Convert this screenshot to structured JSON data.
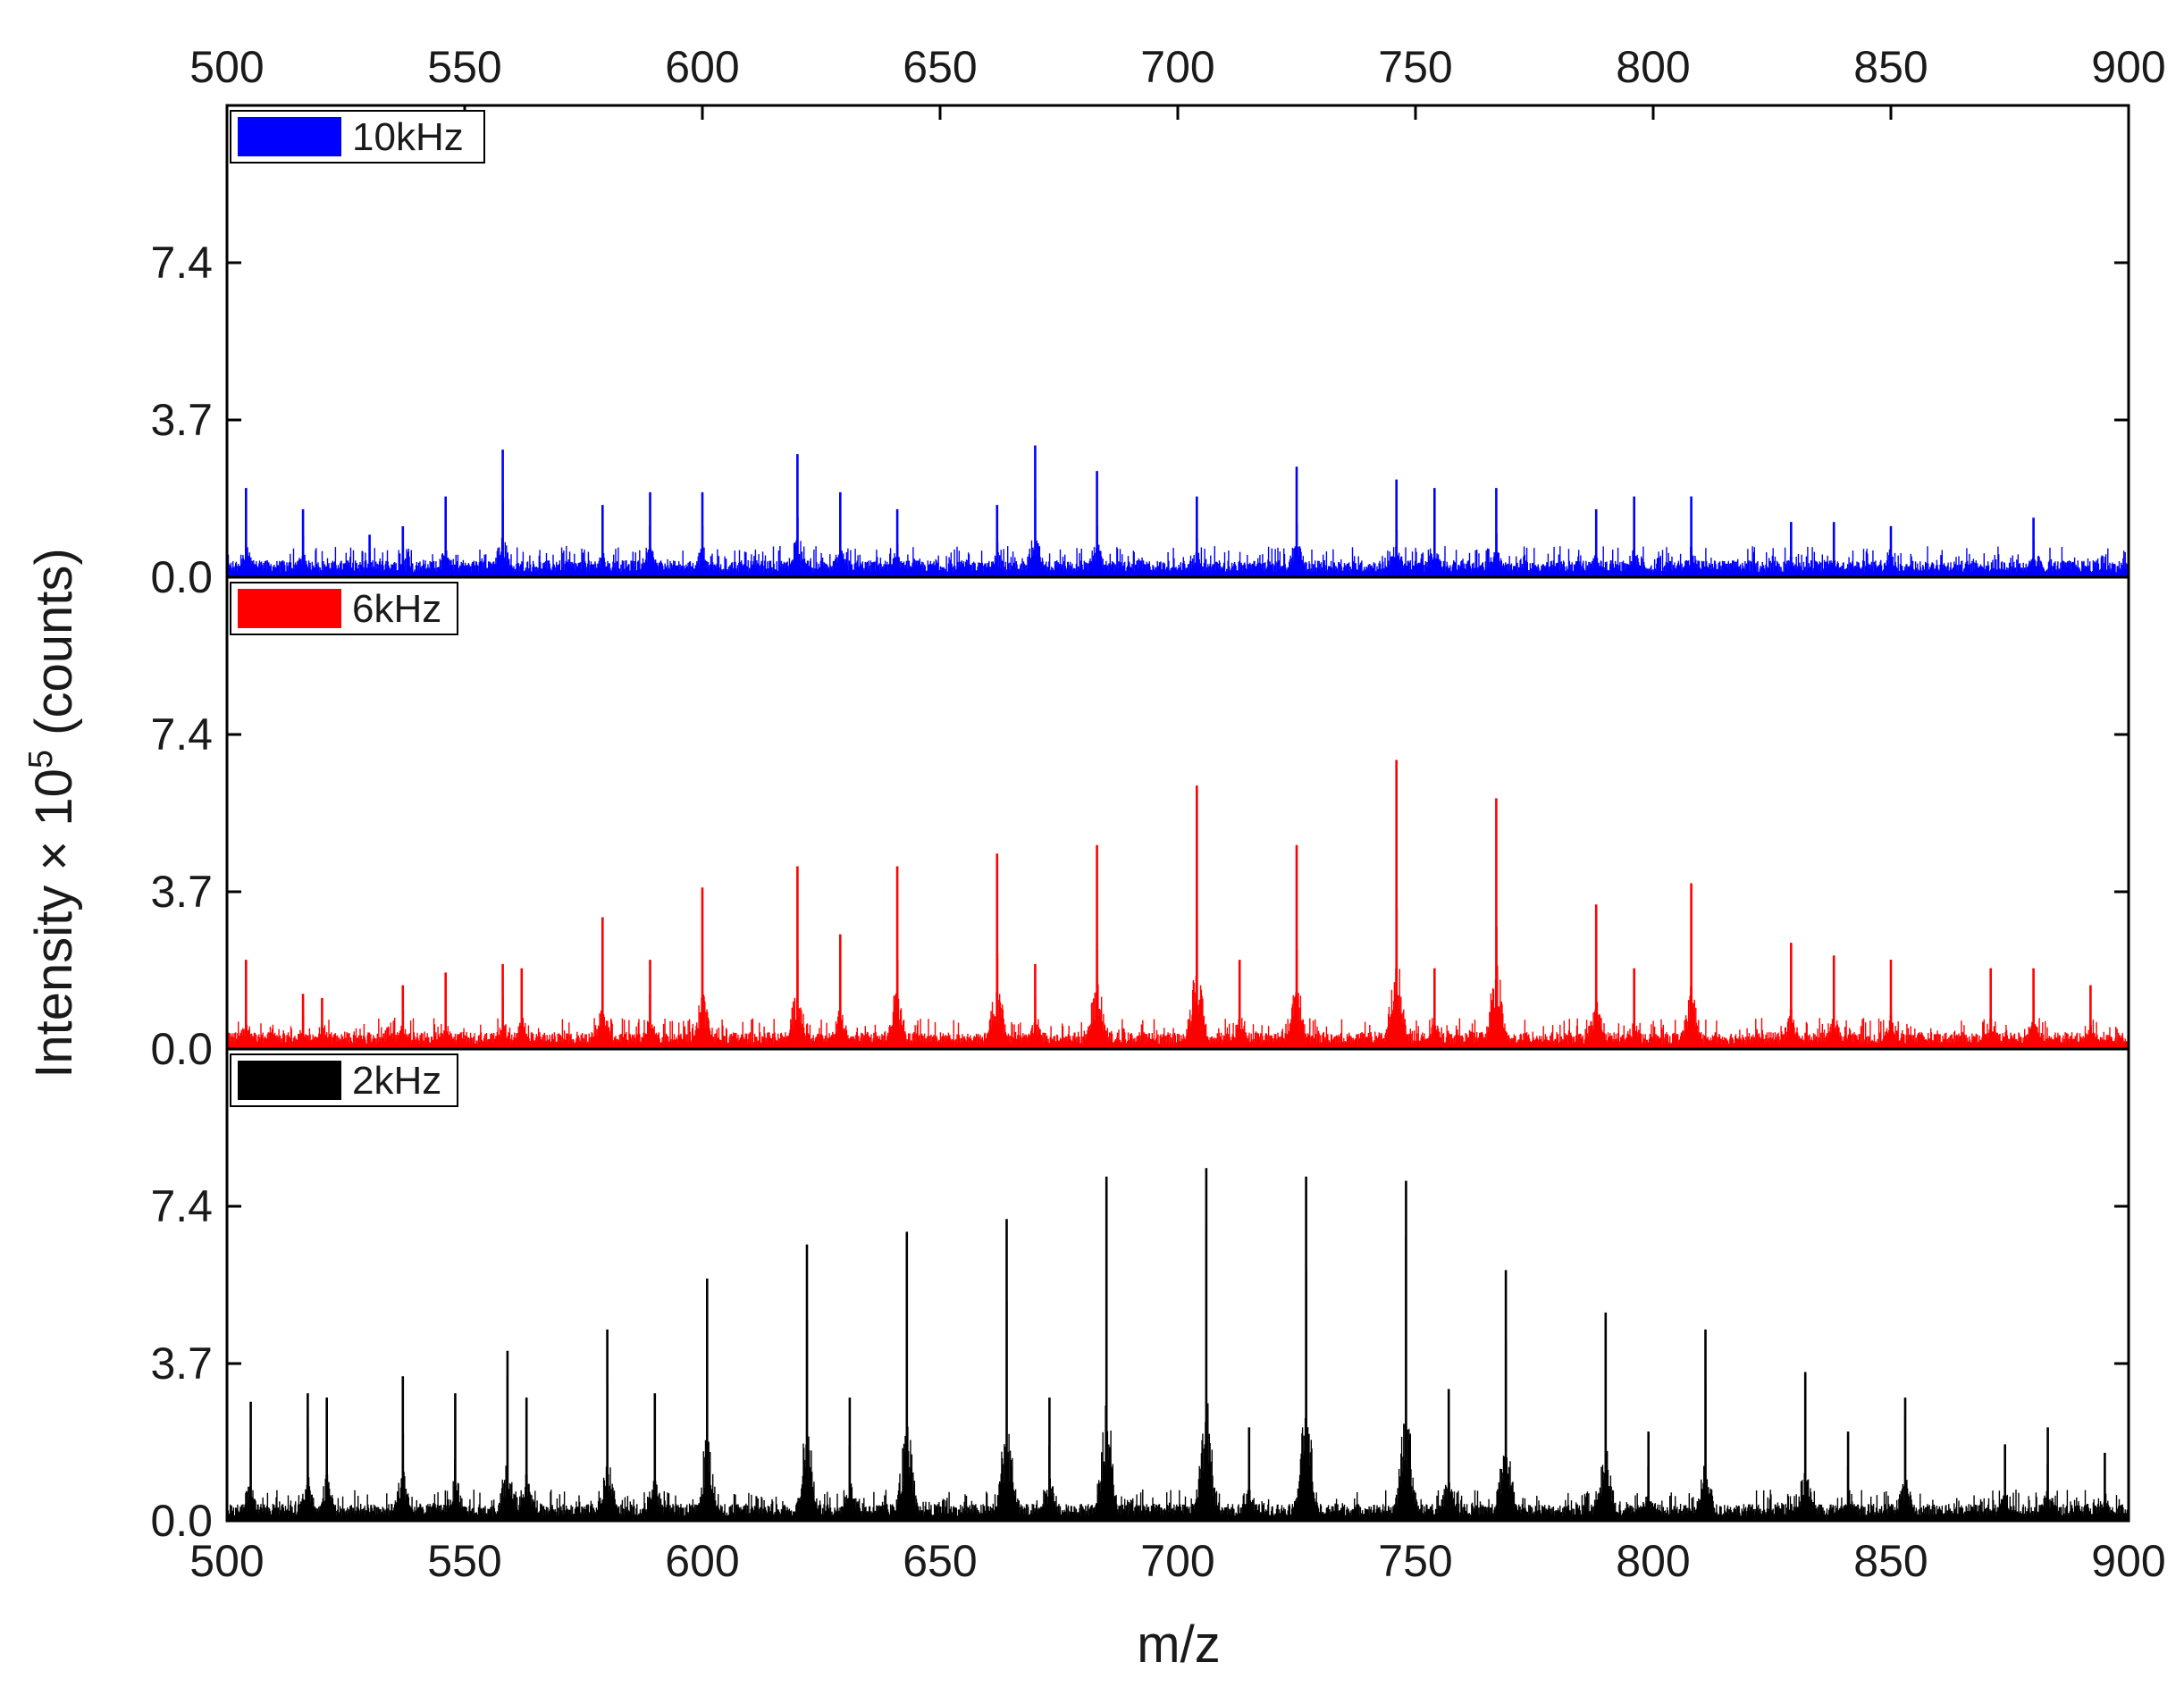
{
  "chart_data": {
    "type": "line",
    "subtype": "stacked-spectra",
    "xlabel": "m/z",
    "ylabel": "Intensity × 10",
    "ylabel_exponent": "5",
    "ylabel_suffix": " (counts)",
    "xlim": [
      500,
      900
    ],
    "x_ticks": [
      500,
      550,
      600,
      650,
      700,
      750,
      800,
      850,
      900
    ],
    "x_tick_labels": [
      "500",
      "550",
      "600",
      "650",
      "700",
      "750",
      "800",
      "850",
      "900"
    ],
    "ylim_per_panel": [
      0,
      11.1
    ],
    "y_ticks": [
      0.0,
      3.7,
      7.4
    ],
    "y_tick_labels": [
      "0.0",
      "3.7",
      "7.4"
    ],
    "grid": false,
    "legend_position": "top-left of each panel",
    "series": [
      {
        "name": "10kHz",
        "color": "#0000ff",
        "panel": "top",
        "peak_mz": [
          504,
          516,
          530,
          537,
          546,
          558,
          579,
          589,
          600,
          620,
          629,
          641,
          662,
          670,
          683,
          704,
          725,
          746,
          754,
          767,
          788,
          796,
          808,
          829,
          838,
          850,
          880
        ],
        "peak_intensity": [
          2.1,
          1.6,
          1.0,
          1.2,
          1.9,
          3.0,
          1.7,
          2.0,
          2.0,
          2.9,
          2.0,
          1.6,
          1.7,
          3.1,
          2.5,
          1.9,
          2.6,
          2.3,
          2.1,
          2.1,
          1.6,
          1.9,
          1.9,
          1.3,
          1.3,
          1.2,
          1.4
        ]
      },
      {
        "name": "6kHz",
        "color": "#ff0000",
        "panel": "middle",
        "peak_mz": [
          504,
          516,
          520,
          537,
          546,
          558,
          562,
          579,
          589,
          600,
          620,
          629,
          641,
          662,
          670,
          683,
          704,
          713,
          725,
          746,
          754,
          767,
          788,
          796,
          808,
          829,
          838,
          850,
          871,
          880,
          892
        ],
        "peak_intensity": [
          2.1,
          1.3,
          1.2,
          1.5,
          1.8,
          2.0,
          1.9,
          3.1,
          2.1,
          3.8,
          4.3,
          2.7,
          4.3,
          4.6,
          2.0,
          4.8,
          6.2,
          2.1,
          4.8,
          6.8,
          1.9,
          5.9,
          3.4,
          1.9,
          3.9,
          2.5,
          2.2,
          2.1,
          1.9,
          1.9,
          1.5
        ]
      },
      {
        "name": "2kHz",
        "color": "#000000",
        "panel": "bottom",
        "peak_mz": [
          505,
          517,
          521,
          537,
          548,
          559,
          563,
          580,
          590,
          601,
          622,
          631,
          643,
          664,
          673,
          685,
          706,
          715,
          727,
          748,
          757,
          769,
          790,
          799,
          811,
          832,
          841,
          853,
          874,
          883,
          895
        ],
        "peak_intensity": [
          2.8,
          3.0,
          2.9,
          3.4,
          3.0,
          4.0,
          2.9,
          4.5,
          3.0,
          5.7,
          6.5,
          2.9,
          6.8,
          7.1,
          2.9,
          8.1,
          8.3,
          2.2,
          8.1,
          8.0,
          3.1,
          5.9,
          4.9,
          2.1,
          4.5,
          3.5,
          2.1,
          2.9,
          1.8,
          2.2,
          1.6
        ]
      }
    ]
  }
}
